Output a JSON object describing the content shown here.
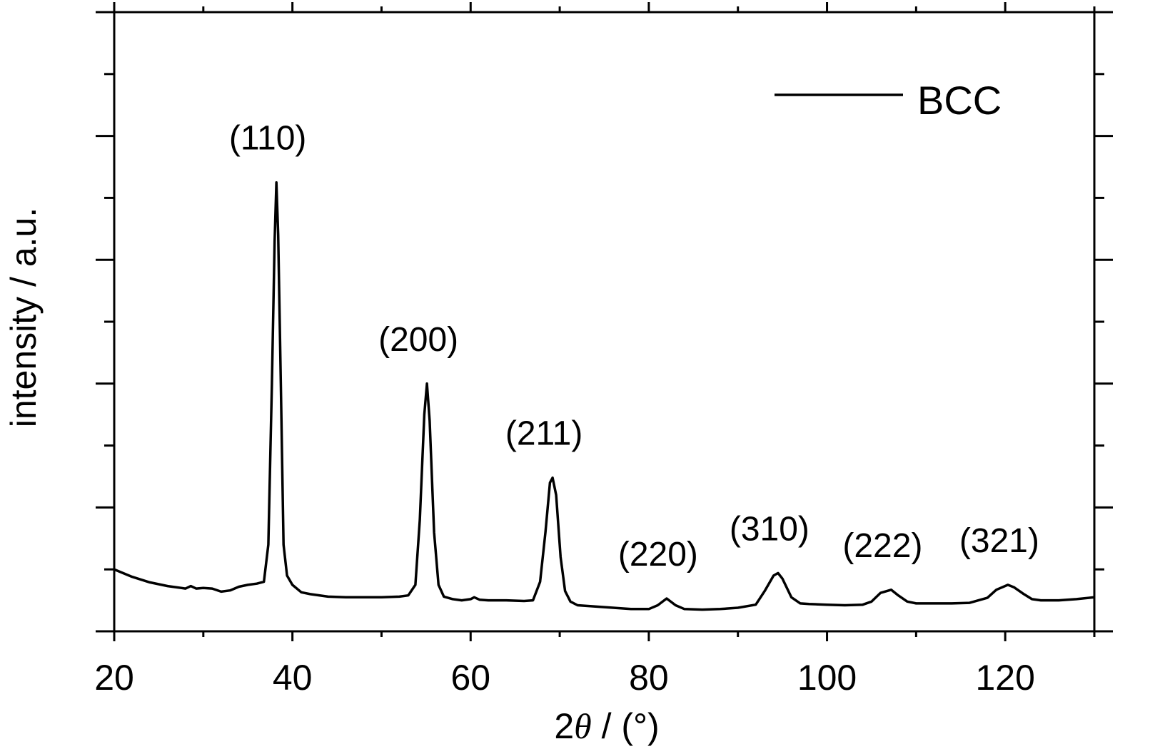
{
  "chart_data": {
    "type": "line",
    "xlabel_prefix": "2",
    "xlabel_symbol": "θ",
    "xlabel_suffix": " / (°)",
    "ylabel": "intensity / a.u.",
    "xlim": [
      20,
      130
    ],
    "ylim": [
      0,
      100
    ],
    "x_ticks": [
      20,
      40,
      60,
      80,
      100,
      120
    ],
    "x_tick_labels": [
      "20",
      "40",
      "60",
      "80",
      "100",
      "120"
    ],
    "y_tick_labels_shown": false,
    "grid": false,
    "legend": {
      "position": "top-right",
      "entries": [
        {
          "name": "BCC",
          "color": "#000000"
        }
      ]
    },
    "series": [
      {
        "name": "BCC",
        "color": "#000000",
        "points": [
          [
            20,
            10
          ],
          [
            22,
            8.8
          ],
          [
            24,
            7.9
          ],
          [
            26,
            7.3
          ],
          [
            28,
            6.9
          ],
          [
            28.6,
            7.3
          ],
          [
            29.2,
            6.9
          ],
          [
            30,
            7.0
          ],
          [
            31,
            6.9
          ],
          [
            32,
            6.4
          ],
          [
            33,
            6.6
          ],
          [
            34,
            7.2
          ],
          [
            35,
            7.5
          ],
          [
            36,
            7.7
          ],
          [
            36.8,
            8.0
          ],
          [
            37.3,
            14
          ],
          [
            37.7,
            40
          ],
          [
            38.0,
            63
          ],
          [
            38.2,
            72.5
          ],
          [
            38.4,
            64
          ],
          [
            38.7,
            40
          ],
          [
            39.0,
            14
          ],
          [
            39.4,
            9.0
          ],
          [
            40,
            7.5
          ],
          [
            41,
            6.3
          ],
          [
            42,
            6.0
          ],
          [
            44,
            5.6
          ],
          [
            46,
            5.5
          ],
          [
            48,
            5.5
          ],
          [
            50,
            5.5
          ],
          [
            52,
            5.6
          ],
          [
            53,
            5.8
          ],
          [
            53.8,
            7.5
          ],
          [
            54.3,
            18
          ],
          [
            54.8,
            35
          ],
          [
            55.1,
            40
          ],
          [
            55.4,
            34
          ],
          [
            55.9,
            16
          ],
          [
            56.4,
            7.5
          ],
          [
            57,
            5.6
          ],
          [
            58,
            5.2
          ],
          [
            59,
            5.0
          ],
          [
            60,
            5.2
          ],
          [
            60.4,
            5.5
          ],
          [
            61,
            5.1
          ],
          [
            62,
            5.0
          ],
          [
            64,
            5.0
          ],
          [
            66,
            4.9
          ],
          [
            67,
            5.0
          ],
          [
            67.8,
            8.0
          ],
          [
            68.4,
            16
          ],
          [
            68.9,
            24
          ],
          [
            69.2,
            24.8
          ],
          [
            69.6,
            22
          ],
          [
            70.1,
            12
          ],
          [
            70.6,
            6.5
          ],
          [
            71.2,
            4.8
          ],
          [
            72,
            4.2
          ],
          [
            74,
            4.0
          ],
          [
            76,
            3.8
          ],
          [
            78,
            3.6
          ],
          [
            80,
            3.6
          ],
          [
            81,
            4.2
          ],
          [
            82,
            5.3
          ],
          [
            83,
            4.2
          ],
          [
            84,
            3.6
          ],
          [
            86,
            3.5
          ],
          [
            88,
            3.6
          ],
          [
            90,
            3.8
          ],
          [
            92,
            4.3
          ],
          [
            93,
            6.5
          ],
          [
            94,
            9.0
          ],
          [
            94.5,
            9.4
          ],
          [
            95,
            8.5
          ],
          [
            96,
            5.5
          ],
          [
            97,
            4.5
          ],
          [
            98,
            4.4
          ],
          [
            100,
            4.3
          ],
          [
            102,
            4.2
          ],
          [
            104,
            4.3
          ],
          [
            105,
            4.8
          ],
          [
            106,
            6.2
          ],
          [
            107.2,
            6.7
          ],
          [
            108,
            5.8
          ],
          [
            109,
            4.8
          ],
          [
            110,
            4.5
          ],
          [
            112,
            4.5
          ],
          [
            114,
            4.5
          ],
          [
            116,
            4.6
          ],
          [
            118,
            5.4
          ],
          [
            119,
            6.7
          ],
          [
            120.3,
            7.5
          ],
          [
            121,
            7.1
          ],
          [
            122,
            6.1
          ],
          [
            123,
            5.2
          ],
          [
            124,
            5.0
          ],
          [
            126,
            5.0
          ],
          [
            128,
            5.2
          ],
          [
            130,
            5.5
          ]
        ]
      }
    ],
    "annotations": [
      {
        "text": "(110)",
        "x": 38.2,
        "y": 72.5
      },
      {
        "text": "(200)",
        "x": 55.1,
        "y": 40
      },
      {
        "text": "(211)",
        "x": 69.2,
        "y": 24.8
      },
      {
        "text": "(220)",
        "x": 82,
        "y": 5.3
      },
      {
        "text": "(310)",
        "x": 94.5,
        "y": 9.4
      },
      {
        "text": "(222)",
        "x": 107.2,
        "y": 6.7
      },
      {
        "text": "(321)",
        "x": 120.3,
        "y": 7.5
      }
    ]
  }
}
